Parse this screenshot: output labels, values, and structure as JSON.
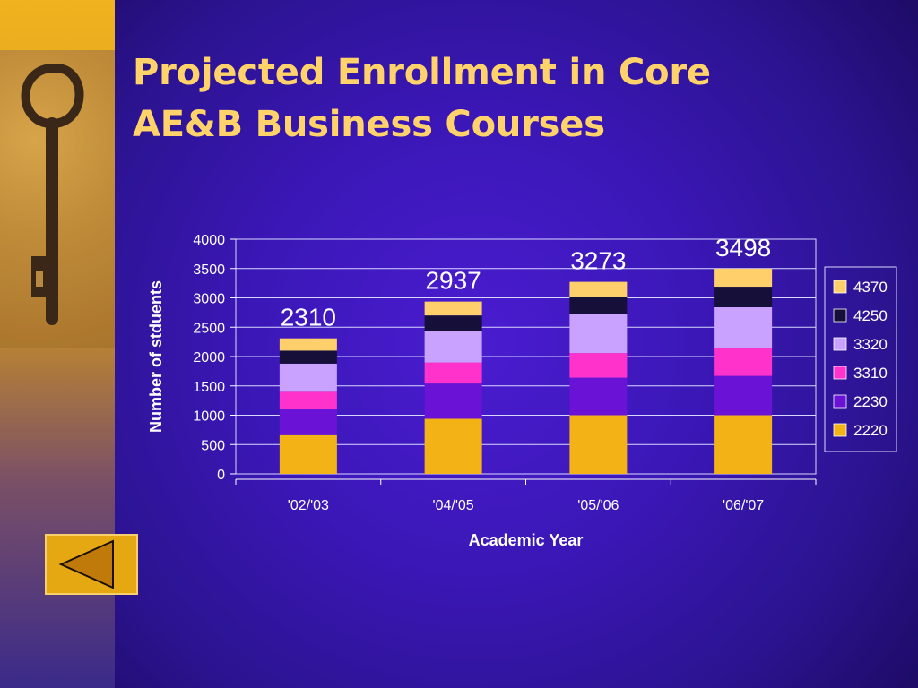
{
  "slide": {
    "title_line1": "Projected Enrollment in Core",
    "title_line2": "AE&B Business Courses"
  },
  "nav": {
    "icon": "triangle-left-icon"
  },
  "colors": {
    "title": "#ffd36a",
    "background": "#3b17b7",
    "sidebar": "#f0b21e"
  },
  "chart_data": {
    "type": "bar",
    "stacked": true,
    "categories": [
      "'02/'03",
      "'04/'05",
      "'05/'06",
      "'06/'07"
    ],
    "series": [
      {
        "name": "2220",
        "color": "#f3b317",
        "values": [
          660,
          940,
          1000,
          1000
        ]
      },
      {
        "name": "2230",
        "color": "#6a13d6",
        "values": [
          440,
          600,
          640,
          670
        ]
      },
      {
        "name": "3310",
        "color": "#ff33cc",
        "values": [
          300,
          360,
          420,
          470
        ]
      },
      {
        "name": "3320",
        "color": "#c9a2ff",
        "values": [
          480,
          540,
          660,
          700
        ]
      },
      {
        "name": "4250",
        "color": "#160f3a",
        "values": [
          220,
          260,
          290,
          350
        ]
      },
      {
        "name": "4370",
        "color": "#ffcf6b",
        "values": [
          210,
          237,
          263,
          308
        ]
      }
    ],
    "totals": [
      "2310",
      "2937",
      "3273",
      "3498"
    ],
    "ylim": [
      0,
      4000
    ],
    "yticks": [
      0,
      500,
      1000,
      1500,
      2000,
      2500,
      3000,
      3500,
      4000
    ],
    "xlabel": "Academic Year",
    "ylabel": "Number of stduents",
    "grid": true,
    "legend": "right"
  }
}
